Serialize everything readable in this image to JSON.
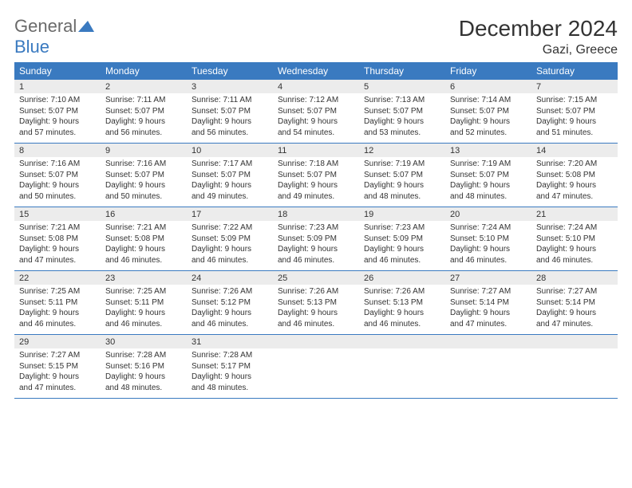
{
  "logo": {
    "part1": "General",
    "part2": "Blue"
  },
  "title": "December 2024",
  "location": "Gazi, Greece",
  "colors": {
    "header_bg": "#3a7ac0",
    "header_fg": "#ffffff",
    "daynum_bg": "#ececec",
    "rule": "#3a7ac0",
    "logo_gray": "#6a6a6a",
    "logo_blue": "#3a7ac0"
  },
  "weekdays": [
    "Sunday",
    "Monday",
    "Tuesday",
    "Wednesday",
    "Thursday",
    "Friday",
    "Saturday"
  ],
  "weeks": [
    [
      {
        "n": "1",
        "sunrise": "Sunrise: 7:10 AM",
        "sunset": "Sunset: 5:07 PM",
        "day1": "Daylight: 9 hours",
        "day2": "and 57 minutes."
      },
      {
        "n": "2",
        "sunrise": "Sunrise: 7:11 AM",
        "sunset": "Sunset: 5:07 PM",
        "day1": "Daylight: 9 hours",
        "day2": "and 56 minutes."
      },
      {
        "n": "3",
        "sunrise": "Sunrise: 7:11 AM",
        "sunset": "Sunset: 5:07 PM",
        "day1": "Daylight: 9 hours",
        "day2": "and 56 minutes."
      },
      {
        "n": "4",
        "sunrise": "Sunrise: 7:12 AM",
        "sunset": "Sunset: 5:07 PM",
        "day1": "Daylight: 9 hours",
        "day2": "and 54 minutes."
      },
      {
        "n": "5",
        "sunrise": "Sunrise: 7:13 AM",
        "sunset": "Sunset: 5:07 PM",
        "day1": "Daylight: 9 hours",
        "day2": "and 53 minutes."
      },
      {
        "n": "6",
        "sunrise": "Sunrise: 7:14 AM",
        "sunset": "Sunset: 5:07 PM",
        "day1": "Daylight: 9 hours",
        "day2": "and 52 minutes."
      },
      {
        "n": "7",
        "sunrise": "Sunrise: 7:15 AM",
        "sunset": "Sunset: 5:07 PM",
        "day1": "Daylight: 9 hours",
        "day2": "and 51 minutes."
      }
    ],
    [
      {
        "n": "8",
        "sunrise": "Sunrise: 7:16 AM",
        "sunset": "Sunset: 5:07 PM",
        "day1": "Daylight: 9 hours",
        "day2": "and 50 minutes."
      },
      {
        "n": "9",
        "sunrise": "Sunrise: 7:16 AM",
        "sunset": "Sunset: 5:07 PM",
        "day1": "Daylight: 9 hours",
        "day2": "and 50 minutes."
      },
      {
        "n": "10",
        "sunrise": "Sunrise: 7:17 AM",
        "sunset": "Sunset: 5:07 PM",
        "day1": "Daylight: 9 hours",
        "day2": "and 49 minutes."
      },
      {
        "n": "11",
        "sunrise": "Sunrise: 7:18 AM",
        "sunset": "Sunset: 5:07 PM",
        "day1": "Daylight: 9 hours",
        "day2": "and 49 minutes."
      },
      {
        "n": "12",
        "sunrise": "Sunrise: 7:19 AM",
        "sunset": "Sunset: 5:07 PM",
        "day1": "Daylight: 9 hours",
        "day2": "and 48 minutes."
      },
      {
        "n": "13",
        "sunrise": "Sunrise: 7:19 AM",
        "sunset": "Sunset: 5:07 PM",
        "day1": "Daylight: 9 hours",
        "day2": "and 48 minutes."
      },
      {
        "n": "14",
        "sunrise": "Sunrise: 7:20 AM",
        "sunset": "Sunset: 5:08 PM",
        "day1": "Daylight: 9 hours",
        "day2": "and 47 minutes."
      }
    ],
    [
      {
        "n": "15",
        "sunrise": "Sunrise: 7:21 AM",
        "sunset": "Sunset: 5:08 PM",
        "day1": "Daylight: 9 hours",
        "day2": "and 47 minutes."
      },
      {
        "n": "16",
        "sunrise": "Sunrise: 7:21 AM",
        "sunset": "Sunset: 5:08 PM",
        "day1": "Daylight: 9 hours",
        "day2": "and 46 minutes."
      },
      {
        "n": "17",
        "sunrise": "Sunrise: 7:22 AM",
        "sunset": "Sunset: 5:09 PM",
        "day1": "Daylight: 9 hours",
        "day2": "and 46 minutes."
      },
      {
        "n": "18",
        "sunrise": "Sunrise: 7:23 AM",
        "sunset": "Sunset: 5:09 PM",
        "day1": "Daylight: 9 hours",
        "day2": "and 46 minutes."
      },
      {
        "n": "19",
        "sunrise": "Sunrise: 7:23 AM",
        "sunset": "Sunset: 5:09 PM",
        "day1": "Daylight: 9 hours",
        "day2": "and 46 minutes."
      },
      {
        "n": "20",
        "sunrise": "Sunrise: 7:24 AM",
        "sunset": "Sunset: 5:10 PM",
        "day1": "Daylight: 9 hours",
        "day2": "and 46 minutes."
      },
      {
        "n": "21",
        "sunrise": "Sunrise: 7:24 AM",
        "sunset": "Sunset: 5:10 PM",
        "day1": "Daylight: 9 hours",
        "day2": "and 46 minutes."
      }
    ],
    [
      {
        "n": "22",
        "sunrise": "Sunrise: 7:25 AM",
        "sunset": "Sunset: 5:11 PM",
        "day1": "Daylight: 9 hours",
        "day2": "and 46 minutes."
      },
      {
        "n": "23",
        "sunrise": "Sunrise: 7:25 AM",
        "sunset": "Sunset: 5:11 PM",
        "day1": "Daylight: 9 hours",
        "day2": "and 46 minutes."
      },
      {
        "n": "24",
        "sunrise": "Sunrise: 7:26 AM",
        "sunset": "Sunset: 5:12 PM",
        "day1": "Daylight: 9 hours",
        "day2": "and 46 minutes."
      },
      {
        "n": "25",
        "sunrise": "Sunrise: 7:26 AM",
        "sunset": "Sunset: 5:13 PM",
        "day1": "Daylight: 9 hours",
        "day2": "and 46 minutes."
      },
      {
        "n": "26",
        "sunrise": "Sunrise: 7:26 AM",
        "sunset": "Sunset: 5:13 PM",
        "day1": "Daylight: 9 hours",
        "day2": "and 46 minutes."
      },
      {
        "n": "27",
        "sunrise": "Sunrise: 7:27 AM",
        "sunset": "Sunset: 5:14 PM",
        "day1": "Daylight: 9 hours",
        "day2": "and 47 minutes."
      },
      {
        "n": "28",
        "sunrise": "Sunrise: 7:27 AM",
        "sunset": "Sunset: 5:14 PM",
        "day1": "Daylight: 9 hours",
        "day2": "and 47 minutes."
      }
    ],
    [
      {
        "n": "29",
        "sunrise": "Sunrise: 7:27 AM",
        "sunset": "Sunset: 5:15 PM",
        "day1": "Daylight: 9 hours",
        "day2": "and 47 minutes."
      },
      {
        "n": "30",
        "sunrise": "Sunrise: 7:28 AM",
        "sunset": "Sunset: 5:16 PM",
        "day1": "Daylight: 9 hours",
        "day2": "and 48 minutes."
      },
      {
        "n": "31",
        "sunrise": "Sunrise: 7:28 AM",
        "sunset": "Sunset: 5:17 PM",
        "day1": "Daylight: 9 hours",
        "day2": "and 48 minutes."
      },
      null,
      null,
      null,
      null
    ]
  ]
}
